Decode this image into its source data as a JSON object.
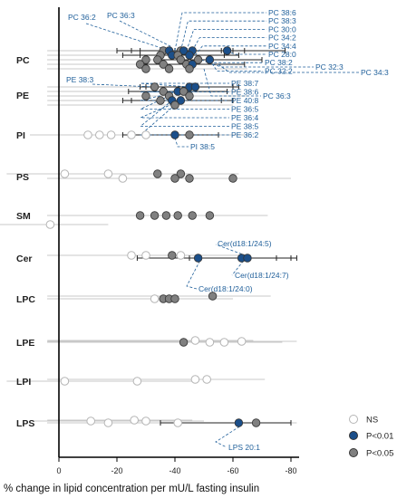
{
  "colors": {
    "ns_stroke": "#b5b5b5",
    "p05_fill": "#808080",
    "p01_fill": "#1b4f8a",
    "marker_stroke": "#333333",
    "annotation": "#1f5f9a",
    "axis": "#000000",
    "ci_light": "#c8c8c8",
    "ci_dark": "#222222"
  },
  "chart_data": {
    "type": "scatter",
    "xlabel": "% change in lipid concentration per mU/L fasting insulin",
    "xlim": [
      5,
      -85
    ],
    "xticks": [
      0,
      -20,
      -40,
      -60,
      -80
    ],
    "xtick_labels": [
      "0",
      "-20",
      "-40",
      "-60",
      "-80"
    ],
    "categories": [
      "PC",
      "PE",
      "PI",
      "PS",
      "SM",
      "Cer",
      "LPC",
      "LPE",
      "LPI",
      "LPS"
    ],
    "legend": [
      {
        "label": "NS",
        "status": "ns"
      },
      {
        "label": "P<0.01",
        "status": "p01"
      },
      {
        "label": "P<0.05",
        "status": "p05"
      }
    ],
    "points": [
      {
        "cat": "PC",
        "off": -10,
        "x": -36,
        "status": "p05"
      },
      {
        "cat": "PC",
        "off": -10,
        "x": -42,
        "status": "p05"
      },
      {
        "cat": "PC",
        "off": -10,
        "x": -38,
        "status": "p01",
        "ci": [
          -20,
          -56
        ]
      },
      {
        "cat": "PC",
        "off": -10,
        "x": -43,
        "status": "p01",
        "ci": [
          -25,
          -60
        ]
      },
      {
        "cat": "PC",
        "off": -10,
        "x": -46,
        "status": "p01",
        "ci": [
          -28,
          -64
        ]
      },
      {
        "cat": "PC",
        "off": -10,
        "x": -58,
        "status": "p01",
        "ci": [
          -40,
          -78
        ]
      },
      {
        "cat": "PC",
        "off": -5,
        "x": -35,
        "status": "p05"
      },
      {
        "cat": "PC",
        "off": -5,
        "x": -39,
        "status": "p01",
        "ci": [
          -22,
          -57
        ]
      },
      {
        "cat": "PC",
        "off": -5,
        "x": -45,
        "status": "p01",
        "ci": [
          -28,
          -62
        ]
      },
      {
        "cat": "PC",
        "off": -5,
        "x": -41,
        "status": "p05"
      },
      {
        "cat": "PC",
        "off": 0,
        "x": -30,
        "status": "p05"
      },
      {
        "cat": "PC",
        "off": 0,
        "x": -34,
        "status": "p05"
      },
      {
        "cat": "PC",
        "off": 0,
        "x": -42,
        "status": "p05"
      },
      {
        "cat": "PC",
        "off": 0,
        "x": -48,
        "status": "p05"
      },
      {
        "cat": "PC",
        "off": 0,
        "x": -52,
        "status": "p01",
        "ci": [
          -34,
          -70
        ]
      },
      {
        "cat": "PC",
        "off": 5,
        "x": -28,
        "status": "p05"
      },
      {
        "cat": "PC",
        "off": 5,
        "x": -36,
        "status": "p05"
      },
      {
        "cat": "PC",
        "off": 5,
        "x": -44,
        "status": "p05"
      },
      {
        "cat": "PC",
        "off": 5,
        "x": -46,
        "status": "p01",
        "ci": [
          -28,
          -64
        ]
      },
      {
        "cat": "PC",
        "off": 10,
        "x": -30,
        "status": "p05"
      },
      {
        "cat": "PC",
        "off": 10,
        "x": -38,
        "status": "p05"
      },
      {
        "cat": "PC",
        "off": 10,
        "x": -45,
        "status": "p05"
      },
      {
        "cat": "PE",
        "off": -9,
        "x": -33,
        "status": "p05"
      },
      {
        "cat": "PE",
        "off": -9,
        "x": -45,
        "status": "p01",
        "ci": [
          -28,
          -60
        ]
      },
      {
        "cat": "PE",
        "off": -9,
        "x": -47,
        "status": "p01",
        "ci": [
          -30,
          -62
        ]
      },
      {
        "cat": "PE",
        "off": -4,
        "x": -36,
        "status": "p05"
      },
      {
        "cat": "PE",
        "off": -4,
        "x": -41,
        "status": "p01",
        "ci": [
          -24,
          -58
        ]
      },
      {
        "cat": "PE",
        "off": -4,
        "x": -43,
        "status": "p05"
      },
      {
        "cat": "PE",
        "off": 1,
        "x": -30,
        "status": "p05"
      },
      {
        "cat": "PE",
        "off": 1,
        "x": -38,
        "status": "p05"
      },
      {
        "cat": "PE",
        "off": 1,
        "x": -45,
        "status": "p05"
      },
      {
        "cat": "PE",
        "off": 6,
        "x": -35,
        "status": "p05"
      },
      {
        "cat": "PE",
        "off": 6,
        "x": -39,
        "status": "p01",
        "ci": [
          -22,
          -56
        ]
      },
      {
        "cat": "PE",
        "off": 6,
        "x": -42,
        "status": "p01",
        "ci": [
          -25,
          -60
        ]
      },
      {
        "cat": "PE",
        "off": 11,
        "x": -40,
        "status": "p05"
      },
      {
        "cat": "PI",
        "off": 0,
        "x": -10,
        "status": "ns"
      },
      {
        "cat": "PI",
        "off": 0,
        "x": -14,
        "status": "ns"
      },
      {
        "cat": "PI",
        "off": 0,
        "x": -18,
        "status": "ns"
      },
      {
        "cat": "PI",
        "off": 0,
        "x": -25,
        "status": "ns"
      },
      {
        "cat": "PI",
        "off": 0,
        "x": -30,
        "status": "ns"
      },
      {
        "cat": "PI",
        "off": 0,
        "x": -40,
        "status": "p01",
        "ci": [
          -22,
          -55
        ]
      },
      {
        "cat": "PI",
        "off": 0,
        "x": -45,
        "status": "p05"
      },
      {
        "cat": "PS",
        "off": -3,
        "x": -2,
        "status": "ns"
      },
      {
        "cat": "PS",
        "off": -3,
        "x": -17,
        "status": "ns"
      },
      {
        "cat": "PS",
        "off": -3,
        "x": -34,
        "status": "p05"
      },
      {
        "cat": "PS",
        "off": -3,
        "x": -42,
        "status": "p05"
      },
      {
        "cat": "PS",
        "off": 2,
        "x": -22,
        "status": "ns"
      },
      {
        "cat": "PS",
        "off": 2,
        "x": -40,
        "status": "p05"
      },
      {
        "cat": "PS",
        "off": 2,
        "x": -45,
        "status": "p05"
      },
      {
        "cat": "PS",
        "off": 2,
        "x": -60,
        "status": "p05"
      },
      {
        "cat": "SM",
        "off": 0,
        "x": -28,
        "status": "p05"
      },
      {
        "cat": "SM",
        "off": 0,
        "x": -33,
        "status": "p05"
      },
      {
        "cat": "SM",
        "off": 0,
        "x": -37,
        "status": "p05"
      },
      {
        "cat": "SM",
        "off": 0,
        "x": -41,
        "status": "p05"
      },
      {
        "cat": "SM",
        "off": 0,
        "x": -46,
        "status": "p05"
      },
      {
        "cat": "SM",
        "off": 0,
        "x": -52,
        "status": "p05"
      },
      {
        "cat": "SM",
        "off": 10,
        "x": 3,
        "status": "ns"
      },
      {
        "cat": "Cer",
        "off": -3,
        "x": -25,
        "status": "ns"
      },
      {
        "cat": "Cer",
        "off": -3,
        "x": -30,
        "status": "ns"
      },
      {
        "cat": "Cer",
        "off": -3,
        "x": -39,
        "status": "p05"
      },
      {
        "cat": "Cer",
        "off": -3,
        "x": -42,
        "status": "ns"
      },
      {
        "cat": "Cer",
        "off": 0,
        "x": -48,
        "status": "p01",
        "ci": [
          -27,
          -75
        ]
      },
      {
        "cat": "Cer",
        "off": 0,
        "x": -63,
        "status": "p01",
        "ci": [
          -45,
          -80
        ]
      },
      {
        "cat": "Cer",
        "off": 0,
        "x": -65,
        "status": "p01",
        "ci": [
          -48,
          -82
        ]
      },
      {
        "cat": "LPC",
        "off": 0,
        "x": -33,
        "status": "ns"
      },
      {
        "cat": "LPC",
        "off": 0,
        "x": -36,
        "status": "p05"
      },
      {
        "cat": "LPC",
        "off": 0,
        "x": -38,
        "status": "p05"
      },
      {
        "cat": "LPC",
        "off": 0,
        "x": -40,
        "status": "p05"
      },
      {
        "cat": "LPC",
        "off": -3,
        "x": -53,
        "status": "p05"
      },
      {
        "cat": "LPE",
        "off": 0,
        "x": -43,
        "status": "p05"
      },
      {
        "cat": "LPE",
        "off": -2,
        "x": -47,
        "status": "ns"
      },
      {
        "cat": "LPE",
        "off": 0,
        "x": -52,
        "status": "ns"
      },
      {
        "cat": "LPE",
        "off": 0,
        "x": -57,
        "status": "ns"
      },
      {
        "cat": "LPE",
        "off": -1,
        "x": -63,
        "status": "ns"
      },
      {
        "cat": "LPI",
        "off": 0,
        "x": -2,
        "status": "ns"
      },
      {
        "cat": "LPI",
        "off": 0,
        "x": -27,
        "status": "ns"
      },
      {
        "cat": "LPI",
        "off": -2,
        "x": -47,
        "status": "ns"
      },
      {
        "cat": "LPI",
        "off": -2,
        "x": -51,
        "status": "ns"
      },
      {
        "cat": "LPS",
        "off": -2,
        "x": -11,
        "status": "ns"
      },
      {
        "cat": "LPS",
        "off": 0,
        "x": -17,
        "status": "ns"
      },
      {
        "cat": "LPS",
        "off": -3,
        "x": -26,
        "status": "ns"
      },
      {
        "cat": "LPS",
        "off": -2,
        "x": -30,
        "status": "ns"
      },
      {
        "cat": "LPS",
        "off": 0,
        "x": -41,
        "status": "ns"
      },
      {
        "cat": "LPS",
        "off": 0,
        "x": -62,
        "status": "p01",
        "ci": [
          -35,
          -80
        ]
      },
      {
        "cat": "LPS",
        "off": 0,
        "x": -68,
        "status": "p05"
      }
    ],
    "annotations": [
      {
        "text": "PC 36:2",
        "cat": "PC",
        "px": -36,
        "poff": -10,
        "side": "upper-left",
        "row": 1
      },
      {
        "text": "PC 36:3",
        "cat": "PC",
        "px": -39,
        "poff": -10,
        "side": "upper-left",
        "row": 0
      },
      {
        "text": "PC 38:6",
        "cat": "PC",
        "px": -40,
        "poff": -10,
        "side": "right",
        "row": 0
      },
      {
        "text": "PC 38:3",
        "cat": "PC",
        "px": -42,
        "poff": -10,
        "side": "right",
        "row": 1
      },
      {
        "text": "PC 30:0",
        "cat": "PC",
        "px": -44,
        "poff": -10,
        "side": "right",
        "row": 2
      },
      {
        "text": "PC 34:2",
        "cat": "PC",
        "px": -46,
        "poff": -10,
        "side": "right",
        "row": 3
      },
      {
        "text": "PC 34:4",
        "cat": "PC",
        "px": -47,
        "poff": -5,
        "side": "right",
        "row": 4
      },
      {
        "text": "PC 28:0",
        "cat": "PC",
        "px": -58,
        "poff": -10,
        "side": "right",
        "row": 5
      },
      {
        "text": "PC 38:2",
        "cat": "PC",
        "px": -49,
        "poff": 0,
        "side": "right",
        "row": 6
      },
      {
        "text": "PC 32:2",
        "cat": "PC",
        "px": -52,
        "poff": 0,
        "side": "right",
        "row": 7
      },
      {
        "text": "PC 32:3",
        "cat": "PC",
        "px": -53,
        "poff": 5,
        "side": "far1",
        "row": 8
      },
      {
        "text": "PC 34:3",
        "cat": "PC",
        "px": -55,
        "poff": 5,
        "side": "far2",
        "row": 9
      },
      {
        "text": "PC 36:3",
        "cat": "PC",
        "px": -50,
        "poff": 10,
        "side": "right",
        "row": 10
      },
      {
        "text": "PE 38:3",
        "cat": "PE",
        "px": -33,
        "poff": -9,
        "side": "left",
        "row": 0
      },
      {
        "text": "PE 38:7",
        "cat": "PE",
        "px": -45,
        "poff": -9,
        "side": "right",
        "row": 0
      },
      {
        "text": "PE 38:6",
        "cat": "PE",
        "px": -47,
        "poff": -4,
        "side": "right",
        "row": 1
      },
      {
        "text": "PE 40:8",
        "cat": "PE",
        "px": -41,
        "poff": -4,
        "side": "right",
        "row": 2
      },
      {
        "text": "PE 36:5",
        "cat": "PE",
        "px": -38,
        "poff": 1,
        "side": "right",
        "row": 3
      },
      {
        "text": "PE 36:4",
        "cat": "PE",
        "px": -42,
        "poff": 6,
        "side": "right",
        "row": 4
      },
      {
        "text": "PE 38:5",
        "cat": "PE",
        "px": -39,
        "poff": 6,
        "side": "right",
        "row": 5
      },
      {
        "text": "PE 36:2",
        "cat": "PE",
        "px": -40,
        "poff": 11,
        "side": "right",
        "row": 6
      },
      {
        "text": "PI 38:5",
        "cat": "PI",
        "px": -40,
        "poff": 0,
        "side": "below",
        "row": 0
      },
      {
        "text": "Cer(d18:1/24:5)",
        "cat": "Cer",
        "px": -65,
        "poff": 0,
        "side": "cer-up",
        "row": 0
      },
      {
        "text": "Cer(d18:1/24:7)",
        "cat": "Cer",
        "px": -63,
        "poff": 0,
        "side": "cer-mid",
        "row": 1
      },
      {
        "text": "Cer(d18:1/24:0)",
        "cat": "Cer",
        "px": -48,
        "poff": 0,
        "side": "cer-low",
        "row": 2
      },
      {
        "text": "LPS 20:1",
        "cat": "LPS",
        "px": -62,
        "poff": 0,
        "side": "below",
        "row": 0
      }
    ]
  }
}
